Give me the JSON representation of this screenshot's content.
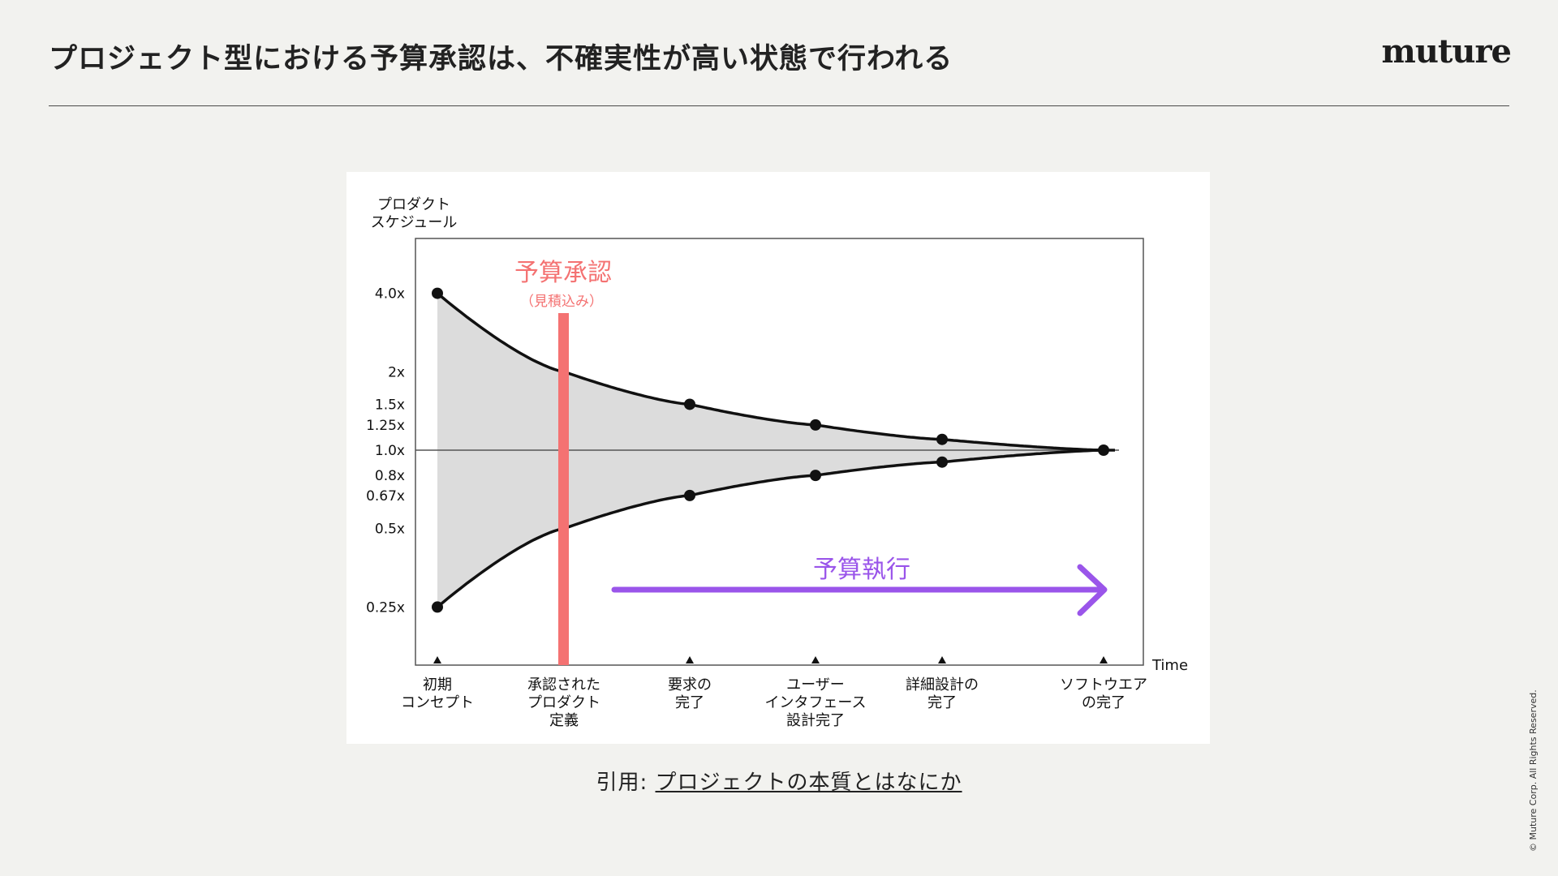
{
  "slide": {
    "title": "プロジェクト型における予算承認は、不確実性が高い状態で行われる",
    "logo": "muture",
    "citation_prefix": "引用: ",
    "citation_link": "プロジェクトの本質とはなにか",
    "copyright": "© Muture Corp. All Rights Reserved."
  },
  "colors": {
    "budget_approval": "#f47272",
    "budget_execution": "#9a55ea",
    "band_fill": "#dcdcdc",
    "curve": "#111111"
  },
  "chart_data": {
    "type": "line",
    "ylabel": "プロダクト\nスケジュール",
    "xlabel": "Time",
    "y_scale": "log",
    "y_ticks": [
      {
        "value": 4.0,
        "label": "4.0x"
      },
      {
        "value": 2.0,
        "label": "2x"
      },
      {
        "value": 1.5,
        "label": "1.5x"
      },
      {
        "value": 1.25,
        "label": "1.25x"
      },
      {
        "value": 1.0,
        "label": "1.0x"
      },
      {
        "value": 0.8,
        "label": "0.8x"
      },
      {
        "value": 0.67,
        "label": "0.67x"
      },
      {
        "value": 0.5,
        "label": "0.5x"
      },
      {
        "value": 0.25,
        "label": "0.25x"
      }
    ],
    "milestones": [
      {
        "label": "初期\nコンセプト",
        "upper": 4.0,
        "lower": 0.25,
        "marked": true
      },
      {
        "label": "承認された\nプロダクト\n定義",
        "upper": 2.0,
        "lower": 0.5,
        "marked": false
      },
      {
        "label": "要求の\n完了",
        "upper": 1.5,
        "lower": 0.67,
        "marked": true
      },
      {
        "label": "ユーザー\nインタフェース\n設計完了",
        "upper": 1.25,
        "lower": 0.8,
        "marked": true
      },
      {
        "label": "詳細設計の\n完了",
        "upper": 1.1,
        "lower": 0.9,
        "marked": true
      },
      {
        "label": "ソフトウエア\nの完了",
        "upper": 1.0,
        "lower": 1.0,
        "marked": true
      }
    ],
    "annotations": {
      "approval_title": "予算承認",
      "approval_sub": "（見積込み）",
      "execution": "予算執行"
    }
  }
}
